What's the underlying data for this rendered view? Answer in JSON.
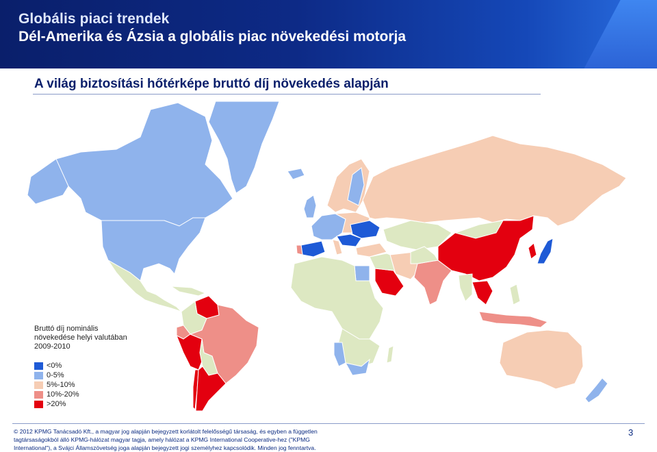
{
  "header": {
    "title": "Globális piaci trendek",
    "subtitle": "Dél-Amerika és Ázsia a globális piac növekedési motorja"
  },
  "section_title": "A világ biztosítási hőtérképe bruttó díj növekedés alapján",
  "legend": {
    "title_lines": [
      "Bruttó díj nominális",
      "növekedése helyi valutában",
      "2009-2010"
    ],
    "items": [
      {
        "label": "<0%",
        "color": "#1e5ad6"
      },
      {
        "label": "0-5%",
        "color": "#8fb3ec"
      },
      {
        "label": "5%-10%",
        "color": "#f6cdb4"
      },
      {
        "label": "10%-20%",
        "color": "#ee8f88"
      },
      {
        "label": ">20%",
        "color": "#e3000f"
      }
    ]
  },
  "colors": {
    "no_data": "#dde8c2",
    "header_dark": "#0a1f6b",
    "header_light": "#2a6ee0"
  },
  "footer": {
    "copyright_lines": [
      "© 2012 KPMG Tanácsadó Kft., a magyar jog alapján bejegyzett korlátolt felelősségű társaság, és egyben a független",
      "tagtársaságokból álló KPMG-hálózat magyar tagja, amely hálózat a KPMG International Cooperative-hez (\"KPMG",
      "International\"), a Svájci Államszövetség joga alapján bejegyzett jogi személyhez kapcsolódik. Minden jog fenntartva."
    ],
    "page_number": "3"
  }
}
